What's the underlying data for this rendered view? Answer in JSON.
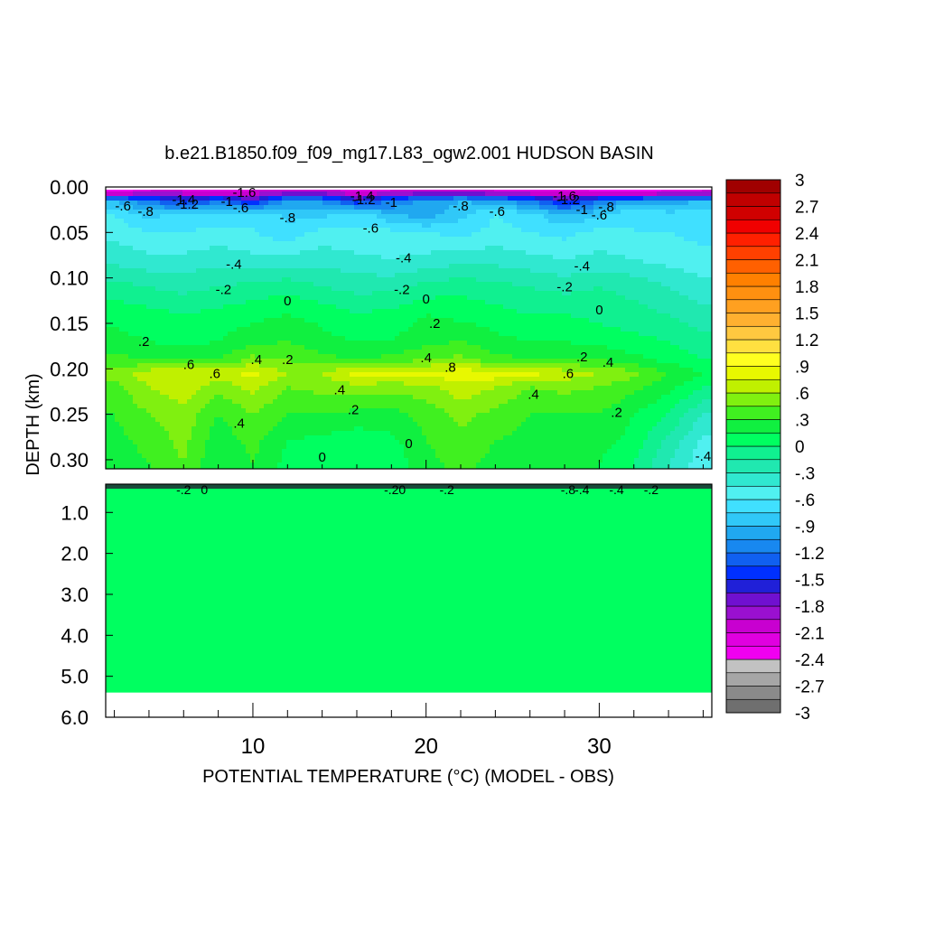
{
  "chart_data": {
    "type": "heatmap",
    "title": "b.e21.B1850.f09_f09_mg17.L83_ogw2.001 HUDSON BASIN",
    "xlabel": "POTENTIAL TEMPERATURE (°C) (MODEL - OBS)",
    "ylabel": "DEPTH (km)",
    "xlim": [
      1.5,
      36.5
    ],
    "x_ticks": [
      "10",
      "20",
      "30"
    ],
    "x_tick_values": [
      10,
      20,
      30
    ],
    "upper_panel": {
      "ylim": [
        0.0,
        0.31
      ],
      "y_ticks": [
        "0.00",
        "0.05",
        "0.10",
        "0.15",
        "0.20",
        "0.25",
        "0.30"
      ],
      "y_tick_values": [
        0.0,
        0.05,
        0.1,
        0.15,
        0.2,
        0.25,
        0.3
      ]
    },
    "lower_panel": {
      "ylim": [
        0.31,
        6.0
      ],
      "y_ticks": [
        "1.0",
        "2.0",
        "3.0",
        "4.0",
        "5.0",
        "6.0"
      ],
      "y_tick_values": [
        1.0,
        2.0,
        3.0,
        4.0,
        5.0,
        6.0
      ],
      "data_bottom_depth": 5.4,
      "uniform_value": 0.0
    },
    "x": [
      2,
      4,
      6,
      8,
      10,
      12,
      14,
      16,
      18,
      20,
      22,
      24,
      26,
      28,
      30,
      32,
      34,
      36
    ],
    "depths": [
      0.005,
      0.015,
      0.03,
      0.05,
      0.08,
      0.11,
      0.14,
      0.17,
      0.19,
      0.205,
      0.22,
      0.25,
      0.28,
      0.305
    ],
    "values": [
      [
        -2.4,
        -2.1,
        -2.1,
        -2.2,
        -2.1,
        -2.0,
        -2.0,
        -2.2,
        -2.1,
        -2.0,
        -2.0,
        -2.1,
        -2.2,
        -2.1,
        -2.3,
        -2.4,
        -2.2,
        -2.1
      ],
      [
        -0.9,
        -1.2,
        -1.5,
        -1.2,
        -1.6,
        -1.0,
        -1.1,
        -1.5,
        -1.2,
        -1.0,
        -0.9,
        -1.0,
        -1.2,
        -1.6,
        -1.2,
        -1.0,
        -1.0,
        -0.9
      ],
      [
        -0.6,
        -0.8,
        -0.7,
        -0.7,
        -0.6,
        -0.8,
        -0.8,
        -0.6,
        -0.9,
        -1.0,
        -0.8,
        -0.6,
        -0.7,
        -0.9,
        -0.8,
        -0.6,
        -0.7,
        -0.7
      ],
      [
        -0.5,
        -0.6,
        -0.6,
        -0.55,
        -0.6,
        -0.7,
        -0.55,
        -0.6,
        -0.55,
        -0.6,
        -0.65,
        -0.55,
        -0.6,
        -0.65,
        -0.55,
        -0.6,
        -0.6,
        -0.65
      ],
      [
        -0.35,
        -0.4,
        -0.4,
        -0.35,
        -0.4,
        -0.4,
        -0.35,
        -0.4,
        -0.45,
        -0.4,
        -0.35,
        -0.35,
        -0.4,
        -0.45,
        -0.4,
        -0.45,
        -0.5,
        -0.55
      ],
      [
        -0.1,
        -0.15,
        -0.2,
        -0.15,
        -0.1,
        -0.05,
        -0.15,
        -0.2,
        -0.2,
        -0.1,
        -0.05,
        -0.1,
        -0.15,
        -0.2,
        -0.15,
        -0.2,
        -0.3,
        -0.4
      ],
      [
        0.1,
        0.05,
        0.0,
        0.05,
        0.1,
        0.15,
        0.1,
        0.0,
        0.05,
        0.15,
        0.1,
        0.05,
        0.0,
        0.0,
        -0.05,
        -0.1,
        -0.15,
        -0.25
      ],
      [
        0.2,
        0.15,
        0.1,
        0.15,
        0.25,
        0.3,
        0.2,
        0.15,
        0.15,
        0.25,
        0.3,
        0.2,
        0.15,
        0.15,
        0.1,
        0.05,
        0.0,
        -0.1
      ],
      [
        0.35,
        0.3,
        0.3,
        0.3,
        0.5,
        0.45,
        0.35,
        0.3,
        0.35,
        0.45,
        0.5,
        0.35,
        0.3,
        0.3,
        0.3,
        0.2,
        0.1,
        0.0
      ],
      [
        0.5,
        0.7,
        0.75,
        0.7,
        0.8,
        0.6,
        0.6,
        0.8,
        0.85,
        0.8,
        0.85,
        0.85,
        0.8,
        0.7,
        0.6,
        0.5,
        0.3,
        0.15
      ],
      [
        0.4,
        0.6,
        0.7,
        0.5,
        0.65,
        0.45,
        0.5,
        0.55,
        0.5,
        0.55,
        0.7,
        0.6,
        0.45,
        0.5,
        0.45,
        0.35,
        0.2,
        0.0
      ],
      [
        0.3,
        0.45,
        0.55,
        0.3,
        0.45,
        0.3,
        0.3,
        0.25,
        0.25,
        0.35,
        0.5,
        0.4,
        0.3,
        0.3,
        0.3,
        0.15,
        0.0,
        -0.3
      ],
      [
        0.25,
        0.35,
        0.5,
        0.2,
        0.35,
        0.15,
        0.1,
        0.05,
        0.1,
        0.3,
        0.4,
        0.3,
        0.25,
        0.2,
        0.2,
        0.1,
        -0.2,
        -0.5
      ],
      [
        0.2,
        0.3,
        0.45,
        0.15,
        0.3,
        0.1,
        0.0,
        0.0,
        0.05,
        0.25,
        0.35,
        0.25,
        0.2,
        0.15,
        0.15,
        0.0,
        -0.3,
        -0.55
      ]
    ],
    "contour_labels": [
      {
        "text": "-.6",
        "x": 2.5,
        "d": 0.021
      },
      {
        "text": "-.8",
        "x": 3.8,
        "d": 0.027
      },
      {
        "text": "-1.4",
        "x": 6.0,
        "d": 0.014
      },
      {
        "text": "-1.2",
        "x": 6.2,
        "d": 0.019
      },
      {
        "text": "-1.6",
        "x": 9.5,
        "d": 0.006
      },
      {
        "text": "-1",
        "x": 8.5,
        "d": 0.016
      },
      {
        "text": "-.6",
        "x": 9.3,
        "d": 0.023
      },
      {
        "text": "-.8",
        "x": 12.0,
        "d": 0.034
      },
      {
        "text": "-1.4",
        "x": 16.3,
        "d": 0.01
      },
      {
        "text": "-1.2",
        "x": 16.4,
        "d": 0.014
      },
      {
        "text": "-.6",
        "x": 16.8,
        "d": 0.045
      },
      {
        "text": "-1",
        "x": 18.0,
        "d": 0.017
      },
      {
        "text": "-.8",
        "x": 22.0,
        "d": 0.021
      },
      {
        "text": "-.6",
        "x": 24.1,
        "d": 0.027
      },
      {
        "text": "-1.6",
        "x": 28.0,
        "d": 0.01
      },
      {
        "text": "-1.2",
        "x": 28.2,
        "d": 0.014
      },
      {
        "text": "-1",
        "x": 29.0,
        "d": 0.025
      },
      {
        "text": "-.8",
        "x": 30.4,
        "d": 0.022
      },
      {
        "text": "-.6",
        "x": 30.0,
        "d": 0.031
      },
      {
        "text": "-.4",
        "x": 8.9,
        "d": 0.085
      },
      {
        "text": "-.4",
        "x": 18.7,
        "d": 0.078
      },
      {
        "text": "-.4",
        "x": 29.0,
        "d": 0.087
      },
      {
        "text": "-.2",
        "x": 8.3,
        "d": 0.113
      },
      {
        "text": "-.2",
        "x": 18.6,
        "d": 0.113
      },
      {
        "text": "-.2",
        "x": 28.0,
        "d": 0.11
      },
      {
        "text": "0",
        "x": 12.0,
        "d": 0.125
      },
      {
        "text": "0",
        "x": 20.0,
        "d": 0.123
      },
      {
        "text": "0",
        "x": 30.0,
        "d": 0.135
      },
      {
        "text": "0",
        "x": 19.0,
        "d": 0.282
      },
      {
        "text": "0",
        "x": 14.0,
        "d": 0.297
      },
      {
        "text": ".2",
        "x": 3.7,
        "d": 0.17
      },
      {
        "text": ".2",
        "x": 20.5,
        "d": 0.15
      },
      {
        "text": ".2",
        "x": 12.0,
        "d": 0.19
      },
      {
        "text": ".2",
        "x": 29.0,
        "d": 0.187
      },
      {
        "text": ".2",
        "x": 15.8,
        "d": 0.245
      },
      {
        "text": ".2",
        "x": 31.0,
        "d": 0.248
      },
      {
        "text": ".4",
        "x": 10.2,
        "d": 0.19
      },
      {
        "text": ".4",
        "x": 20.0,
        "d": 0.188
      },
      {
        "text": ".4",
        "x": 30.5,
        "d": 0.193
      },
      {
        "text": ".4",
        "x": 15.0,
        "d": 0.223
      },
      {
        "text": ".4",
        "x": 9.2,
        "d": 0.26
      },
      {
        "text": ".4",
        "x": 26.2,
        "d": 0.228
      },
      {
        "text": ".6",
        "x": 6.3,
        "d": 0.195
      },
      {
        "text": ".6",
        "x": 7.8,
        "d": 0.205
      },
      {
        "text": ".6",
        "x": 28.2,
        "d": 0.205
      },
      {
        "text": ".8",
        "x": 21.4,
        "d": 0.198
      },
      {
        "text": "-.4",
        "x": 36.0,
        "d": 0.296
      }
    ],
    "lower_labels": [
      {
        "text": "-.2",
        "x": 6.0
      },
      {
        "text": "0",
        "x": 7.2
      },
      {
        "text": "-.20",
        "x": 18.2
      },
      {
        "text": "-.2",
        "x": 21.2
      },
      {
        "text": "-.8",
        "x": 28.2
      },
      {
        "text": "-.4",
        "x": 29.0
      },
      {
        "text": "-.4",
        "x": 31.0
      },
      {
        "text": "-.2",
        "x": 33.0
      }
    ],
    "colorbar": {
      "levels": [
        -3,
        -2.85,
        -2.7,
        -2.55,
        -2.4,
        -2.25,
        -2.1,
        -1.95,
        -1.8,
        -1.65,
        -1.5,
        -1.35,
        -1.2,
        -1.05,
        -0.9,
        -0.75,
        -0.6,
        -0.45,
        -0.3,
        -0.15,
        0,
        0.15,
        0.3,
        0.45,
        0.6,
        0.75,
        0.9,
        1.05,
        1.2,
        1.35,
        1.5,
        1.65,
        1.8,
        1.95,
        2.1,
        2.25,
        2.4,
        2.55,
        2.7,
        2.85,
        3
      ],
      "colors": [
        "#6f6f6f",
        "#8a8a8a",
        "#a6a6a6",
        "#c2c2c2",
        "#f000f0",
        "#e000e0",
        "#c800d0",
        "#9a10d0",
        "#7010d0",
        "#2020d8",
        "#0030ff",
        "#1060f0",
        "#1888f0",
        "#20a8f0",
        "#30c8f8",
        "#40e0ff",
        "#50f0f0",
        "#30e8d0",
        "#20e8b0",
        "#10f090",
        "#00ff60",
        "#10f040",
        "#40f020",
        "#80f010",
        "#c0f000",
        "#e8f800",
        "#ffff20",
        "#ffe040",
        "#ffc840",
        "#ffb030",
        "#ffa020",
        "#ff9010",
        "#ff8000",
        "#ff6000",
        "#ff4000",
        "#ff2000",
        "#f00000",
        "#d00000",
        "#c00000",
        "#a00000"
      ],
      "labels": [
        "3",
        "2.7",
        "2.4",
        "2.1",
        "1.8",
        "1.5",
        "1.2",
        ".9",
        ".6",
        ".3",
        "0",
        "-.3",
        "-.6",
        "-.9",
        "-1.2",
        "-1.5",
        "-1.8",
        "-2.1",
        "-2.4",
        "-2.7",
        "-3"
      ]
    }
  }
}
